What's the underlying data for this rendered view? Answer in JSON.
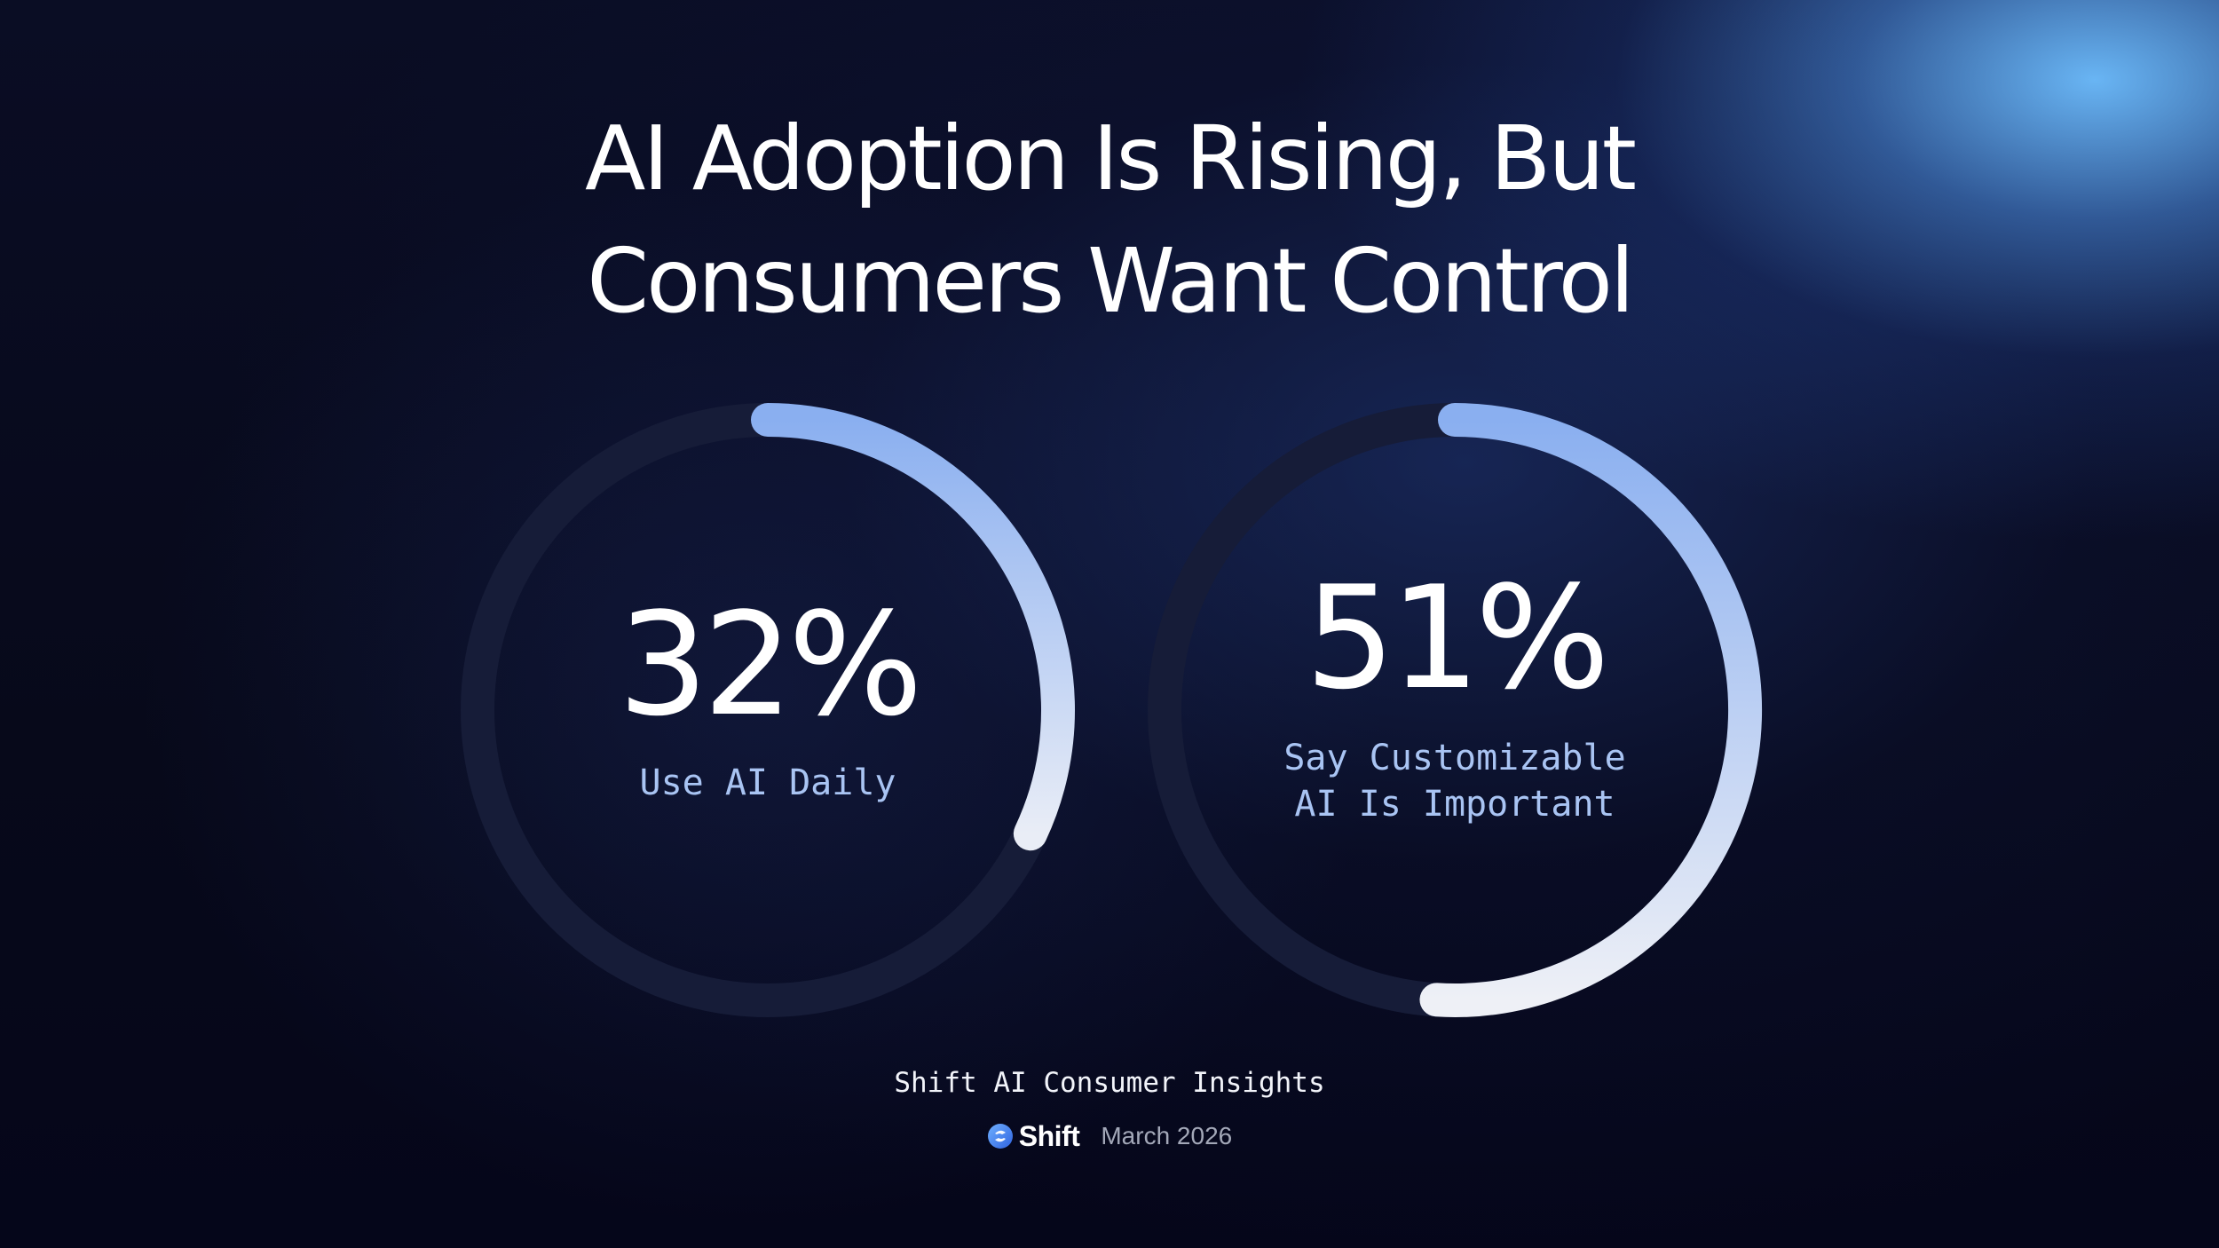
{
  "title": {
    "line1": "AI Adoption Is Rising, But",
    "line2": "Consumers Want Control"
  },
  "chart_data": [
    {
      "type": "donut",
      "value": 32,
      "max": 100,
      "label": "32%",
      "caption_lines": [
        "Use AI Daily"
      ]
    },
    {
      "type": "donut",
      "value": 51,
      "max": 100,
      "label": "51%",
      "caption_lines": [
        "Say Customizable",
        "AI Is Important"
      ]
    }
  ],
  "colors": {
    "arc_start": "#8aaff0",
    "arc_end": "#eef0f6",
    "track": "#1a2140",
    "caption": "#a9c4f3"
  },
  "footer": {
    "source": "Shift AI Consumer Insights",
    "brand": "Shift",
    "brand_icon": "shift-logo-icon",
    "date": "March 2026"
  }
}
